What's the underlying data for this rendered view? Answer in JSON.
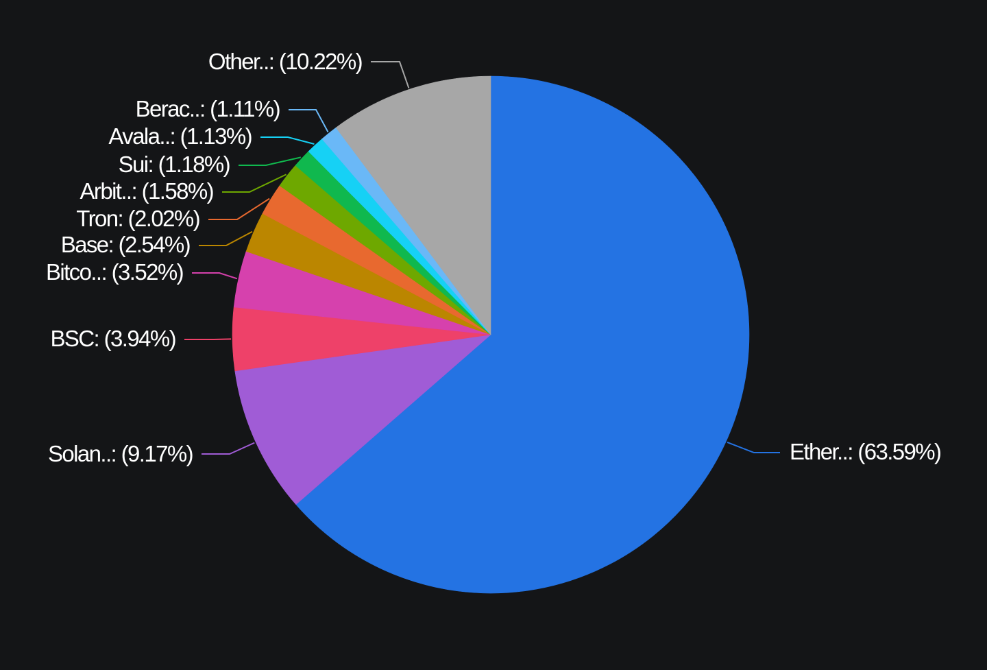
{
  "chart_data": {
    "type": "pie",
    "background": "#141517",
    "title": "",
    "slices": [
      {
        "name": "Ether..",
        "label": "Ether..: (63.59%)",
        "value": 63.59,
        "color": "#2473e3"
      },
      {
        "name": "Solan..",
        "label": "Solan..: (9.17%)",
        "value": 9.17,
        "color": "#a05cd6"
      },
      {
        "name": "BSC",
        "label": "BSC: (3.94%)",
        "value": 3.94,
        "color": "#ee4169"
      },
      {
        "name": "Bitco..",
        "label": "Bitco..: (3.52%)",
        "value": 3.52,
        "color": "#d641ad"
      },
      {
        "name": "Base",
        "label": "Base: (2.54%)",
        "value": 2.54,
        "color": "#bb8600"
      },
      {
        "name": "Tron",
        "label": "Tron: (2.02%)",
        "value": 2.02,
        "color": "#e8692f"
      },
      {
        "name": "Arbit..",
        "label": "Arbit..: (1.58%)",
        "value": 1.58,
        "color": "#6ea800"
      },
      {
        "name": "Sui",
        "label": "Sui: (1.18%)",
        "value": 1.18,
        "color": "#10b84e"
      },
      {
        "name": "Avala..",
        "label": "Avala..: (1.13%)",
        "value": 1.13,
        "color": "#16d1f5"
      },
      {
        "name": "Berac..",
        "label": "Berac..: (1.11%)",
        "value": 1.11,
        "color": "#6ab8f7"
      },
      {
        "name": "Other..",
        "label": "Other..: (10.22%)",
        "value": 10.22,
        "color": "#a7a7a7"
      }
    ],
    "start_angle": "top",
    "direction": "clockwise",
    "legend": "none",
    "labels": "outside with leader lines"
  }
}
